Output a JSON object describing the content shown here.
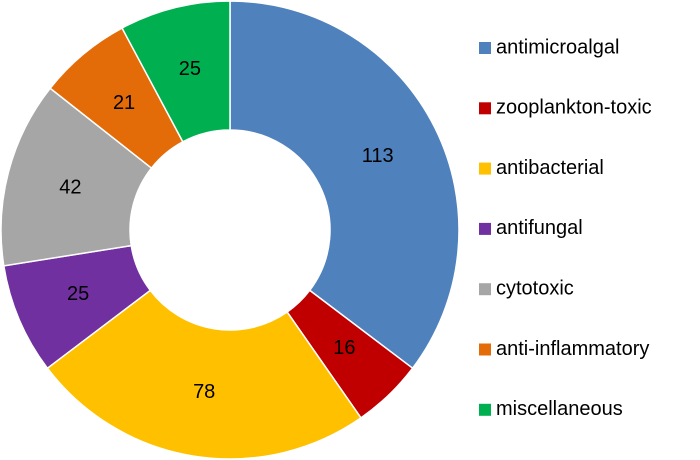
{
  "chart_data": {
    "type": "donut",
    "categories": [
      "antimicroalgal",
      "zooplankton-toxic",
      "antibacterial",
      "antifungal",
      "cytotoxic",
      "anti-inflammatory",
      "miscellaneous"
    ],
    "values": [
      113,
      16,
      78,
      25,
      42,
      21,
      25
    ],
    "colors": [
      "#4f81bd",
      "#c00000",
      "#ffc000",
      "#7030a0",
      "#a6a6a6",
      "#e36c09",
      "#00b050"
    ],
    "legend": "right"
  }
}
